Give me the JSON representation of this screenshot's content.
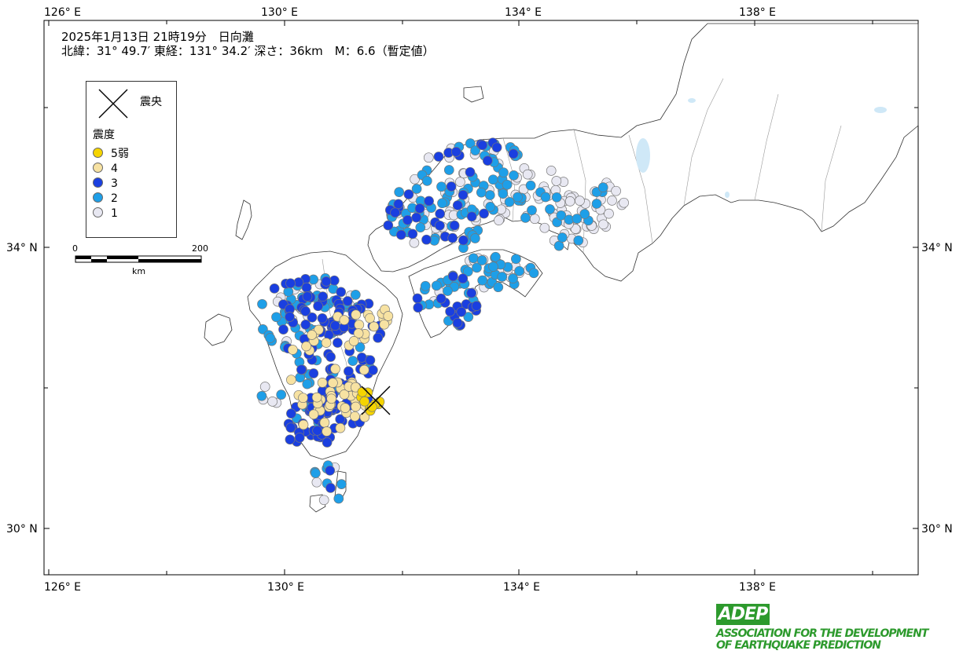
{
  "title": {
    "line1": "2025年1月13日 21時19分　日向灘",
    "line2": "北緯：31° 49.7′ 東経：131° 34.2′ 深さ：36km　M：6.6（暫定値）"
  },
  "axes": {
    "longitudes": [
      "126° E",
      "130° E",
      "134° E",
      "138° E"
    ],
    "latitudes": [
      "34° N",
      "30° N"
    ]
  },
  "legend": {
    "epicenter_label": "震央",
    "intensity_heading": "震度",
    "items": [
      {
        "label": "5弱",
        "color": "#f5d400"
      },
      {
        "label": "4",
        "color": "#f7e2a2"
      },
      {
        "label": "3",
        "color": "#1a3fe0"
      },
      {
        "label": "2",
        "color": "#1e9fe8"
      },
      {
        "label": "1",
        "color": "#e8e8f2"
      }
    ]
  },
  "scale": {
    "min": "0",
    "max": "200",
    "unit": "km"
  },
  "logo": {
    "mark": "ADEP",
    "line1": "ASSOCIATION FOR THE DEVELOPMENT",
    "line2": "OF EARTHQUAKE PREDICTION"
  },
  "colors": {
    "land_stroke": "#333333",
    "lake": "#cfe8f7",
    "frame": "#000000"
  }
}
